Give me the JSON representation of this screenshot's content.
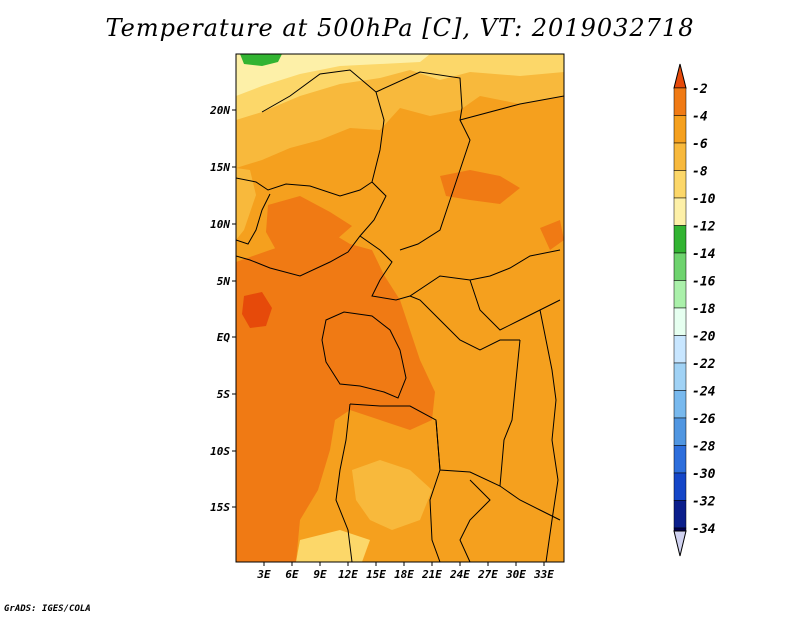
{
  "title": "Temperature at 500hPa [C], VT: 2019032718",
  "footer": "GrADS: IGES/COLA",
  "map": {
    "lat_labels": [
      "20N",
      "15N",
      "10N",
      "5N",
      "EQ",
      "5S",
      "10S",
      "15S"
    ],
    "lon_labels": [
      "3E",
      "6E",
      "9E",
      "12E",
      "15E",
      "18E",
      "21E",
      "24E",
      "27E",
      "30E",
      "33E"
    ],
    "field": "Temperature at 500hPa",
    "units": "C"
  },
  "colorbar": {
    "labels": [
      "-2",
      "-4",
      "-6",
      "-8",
      "-10",
      "-12",
      "-14",
      "-16",
      "-18",
      "-20",
      "-22",
      "-24",
      "-26",
      "-28",
      "-30",
      "-32",
      "-34"
    ],
    "colors": [
      "#e64a0a",
      "#f07a14",
      "#f5a01e",
      "#f8b93c",
      "#fcd769",
      "#fdf0a8",
      "#32b432",
      "#6ed36e",
      "#aaf0aa",
      "#e6fff0",
      "#c8e6ff",
      "#a0d2f5",
      "#78b9ee",
      "#5096e1",
      "#2d6edc",
      "#1446c8",
      "#0a1e8c",
      "#000050",
      "#d0d2f0"
    ]
  }
}
